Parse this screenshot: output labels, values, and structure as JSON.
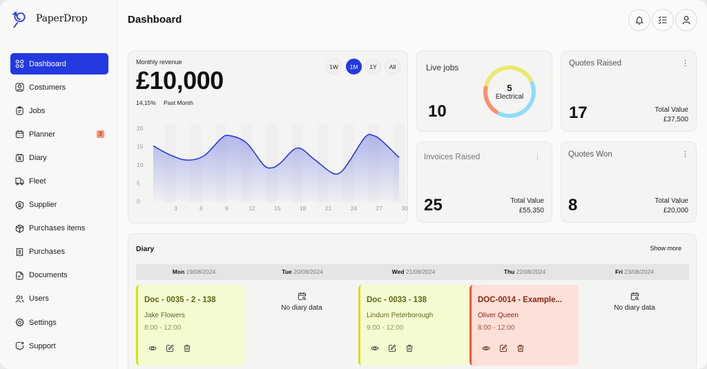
{
  "app": {
    "brand": "PaperDrop",
    "accent_color": "#2539e0"
  },
  "sidebar": {
    "items": [
      {
        "label": "Dashboard",
        "icon": "grid-icon",
        "active": true
      },
      {
        "label": "Costumers",
        "icon": "user-square-icon"
      },
      {
        "label": "Jobs",
        "icon": "clipboard-icon"
      },
      {
        "label": "Planner",
        "icon": "calendar-icon",
        "badge": "3"
      },
      {
        "label": "Diary",
        "icon": "diary-icon"
      },
      {
        "label": "Fleet",
        "icon": "truck-icon"
      },
      {
        "label": "Supplier",
        "icon": "user-shield-icon"
      },
      {
        "label": "Purchases items",
        "icon": "box-icon"
      },
      {
        "label": "Purchases",
        "icon": "receipt-icon"
      },
      {
        "label": "Documents",
        "icon": "document-icon"
      },
      {
        "label": "Users",
        "icon": "users-icon"
      },
      {
        "label": "Settings",
        "icon": "gear-icon"
      },
      {
        "label": "Support",
        "icon": "chat-icon"
      }
    ]
  },
  "header": {
    "title": "Dashboard",
    "buttons": [
      "bell-icon",
      "checklist-icon",
      "user-icon"
    ]
  },
  "revenue": {
    "label": "Monthly revenue",
    "value": "£10,000",
    "change": "14,15%",
    "period": "Past Month",
    "ranges": [
      {
        "label": "1W"
      },
      {
        "label": "1M",
        "active": true
      },
      {
        "label": "1Y"
      },
      {
        "label": "All"
      }
    ]
  },
  "chart_data": {
    "type": "area",
    "title": "Monthly revenue",
    "xlabel": "",
    "ylabel": "",
    "x_ticks": [
      3,
      6,
      9,
      12,
      15,
      18,
      21,
      24,
      27,
      30
    ],
    "y_ticks": [
      0,
      5,
      10,
      15,
      20
    ],
    "ylim": [
      0,
      20
    ],
    "xlim": [
      1,
      30
    ],
    "grid": false,
    "series": [
      {
        "name": "Revenue",
        "color": "#2539e0",
        "x": [
          1,
          3,
          5,
          7,
          9,
          10,
          12,
          14,
          15,
          16,
          18,
          20,
          22,
          23,
          24,
          26,
          27,
          28,
          30
        ],
        "values": [
          15.2,
          12.7,
          11.3,
          12.5,
          17.2,
          18.0,
          16.0,
          10.0,
          9.2,
          10.5,
          14.6,
          11.5,
          7.9,
          7.8,
          10.5,
          17.6,
          18.0,
          16.5,
          12.0
        ]
      }
    ]
  },
  "live_jobs": {
    "title": "Live jobs",
    "value": "10",
    "donut_center_value": "5",
    "donut_center_label": "Electrical",
    "segments": [
      {
        "color": "#ebe96f",
        "value": 4
      },
      {
        "color": "#8fdcfa",
        "value": 4
      },
      {
        "color": "#f9906c",
        "value": 2
      }
    ]
  },
  "stats": {
    "quotes_raised": {
      "title": "Quotes Raised",
      "value": "17",
      "total_label": "Total Value",
      "total": "£37,500"
    },
    "invoices_raised": {
      "title": "Invoices Raised",
      "value": "25",
      "total_label": "Total Value",
      "total": "£55,350"
    },
    "quotes_won": {
      "title": "Quotes Won",
      "value": "8",
      "total_label": "Total Value",
      "total": "£20,000"
    }
  },
  "diary": {
    "title": "Diary",
    "show_more": "Show more",
    "empty_text": "No diary data",
    "days": [
      {
        "day": "Mon",
        "date": "19/08/2024"
      },
      {
        "day": "Tue",
        "date": "20/08/2024"
      },
      {
        "day": "Wed",
        "date": "21/08/2024"
      },
      {
        "day": "Thu",
        "date": "22/08/2024"
      },
      {
        "day": "Fri",
        "date": "23/08/2024"
      }
    ],
    "events": [
      {
        "day": "Mon",
        "title": "Doc - 0035 - 2 - 138",
        "name": "Jake Flowers",
        "time": "8:00 - 12:00",
        "color": "green"
      },
      {
        "day": "Wed",
        "title": "Doc - 0033  - 138",
        "name": "Lindum Peterborough",
        "time": "9:00 - 12:00",
        "color": "green"
      },
      {
        "day": "Thu",
        "title": "DOC-0014 - Example...",
        "name": "Oliver Queen",
        "time": "8:00 - 12:00",
        "color": "red"
      }
    ]
  }
}
